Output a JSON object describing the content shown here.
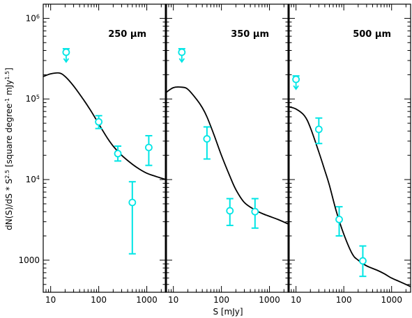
{
  "figure": {
    "ylabel": "dN(S)/dS * S^2.5 [square degree^-1 mJy^1.5]",
    "xlabel": "S [mJy]",
    "ytick_labels": [
      "10^6",
      "10^5",
      "10^4",
      "1000"
    ],
    "xtick_labels": [
      "10",
      "100",
      "1000"
    ],
    "colors": {
      "model": "#000000",
      "data": "#00e5e5",
      "axes": "#000000"
    }
  },
  "chart_data": [
    {
      "type": "scatter",
      "panel": "250",
      "title": "250 μm",
      "xscale": "log",
      "yscale": "log",
      "xlim": [
        7,
        2500
      ],
      "ylim": [
        400,
        1500000
      ],
      "model_curve": {
        "x": [
          7,
          10,
          15,
          20,
          30,
          50,
          70,
          100,
          150,
          200,
          300,
          500,
          700,
          1000,
          1500,
          2500
        ],
        "y": [
          190000,
          205000,
          210000,
          190000,
          145000,
          95000,
          70000,
          49000,
          33000,
          26000,
          20000,
          15500,
          13500,
          12000,
          11000,
          10000
        ]
      },
      "points": [
        {
          "x": 100,
          "y": 52000,
          "yerr_low": 43000,
          "yerr_high": 62000
        },
        {
          "x": 250,
          "y": 21000,
          "yerr_low": 17000,
          "yerr_high": 26000
        },
        {
          "x": 500,
          "y": 5200,
          "yerr_low": 1200,
          "yerr_high": 9400
        },
        {
          "x": 1100,
          "y": 25000,
          "yerr_low": 15000,
          "yerr_high": 35000
        }
      ],
      "upper_limits": [
        {
          "x": 21,
          "y": 380000
        }
      ]
    },
    {
      "type": "scatter",
      "panel": "350",
      "title": "350 μm",
      "xscale": "log",
      "yscale": "log",
      "xlim": [
        7,
        2500
      ],
      "ylim": [
        400,
        1500000
      ],
      "model_curve": {
        "x": [
          7,
          10,
          15,
          20,
          30,
          40,
          50,
          70,
          100,
          150,
          200,
          300,
          500,
          700,
          1000,
          1500,
          2500
        ],
        "y": [
          120000,
          138000,
          140000,
          132000,
          100000,
          78000,
          60000,
          36000,
          20000,
          11000,
          7500,
          5200,
          4200,
          3800,
          3500,
          3200,
          2800
        ]
      },
      "points": [
        {
          "x": 50,
          "y": 32000,
          "yerr_low": 18000,
          "yerr_high": 45000
        },
        {
          "x": 150,
          "y": 4100,
          "yerr_low": 2700,
          "yerr_high": 5800
        },
        {
          "x": 500,
          "y": 4000,
          "yerr_low": 2500,
          "yerr_high": 5800
        }
      ],
      "upper_limits": [
        {
          "x": 15,
          "y": 380000
        }
      ]
    },
    {
      "type": "scatter",
      "panel": "500",
      "title": "500 μm",
      "xscale": "log",
      "yscale": "log",
      "xlim": [
        7,
        2500
      ],
      "ylim": [
        400,
        1500000
      ],
      "model_curve": {
        "x": [
          7,
          10,
          15,
          20,
          30,
          40,
          50,
          70,
          100,
          150,
          200,
          300,
          500,
          700,
          1000,
          1500,
          2500
        ],
        "y": [
          80000,
          75000,
          62000,
          44000,
          22000,
          13000,
          8500,
          4000,
          2100,
          1200,
          1000,
          850,
          750,
          680,
          600,
          540,
          470
        ]
      },
      "points": [
        {
          "x": 30,
          "y": 42000,
          "yerr_low": 28000,
          "yerr_high": 58000
        },
        {
          "x": 80,
          "y": 3200,
          "yerr_low": 2000,
          "yerr_high": 4600
        },
        {
          "x": 250,
          "y": 980,
          "yerr_low": 630,
          "yerr_high": 1500
        }
      ],
      "upper_limits": [
        {
          "x": 10,
          "y": 175000
        }
      ]
    }
  ]
}
